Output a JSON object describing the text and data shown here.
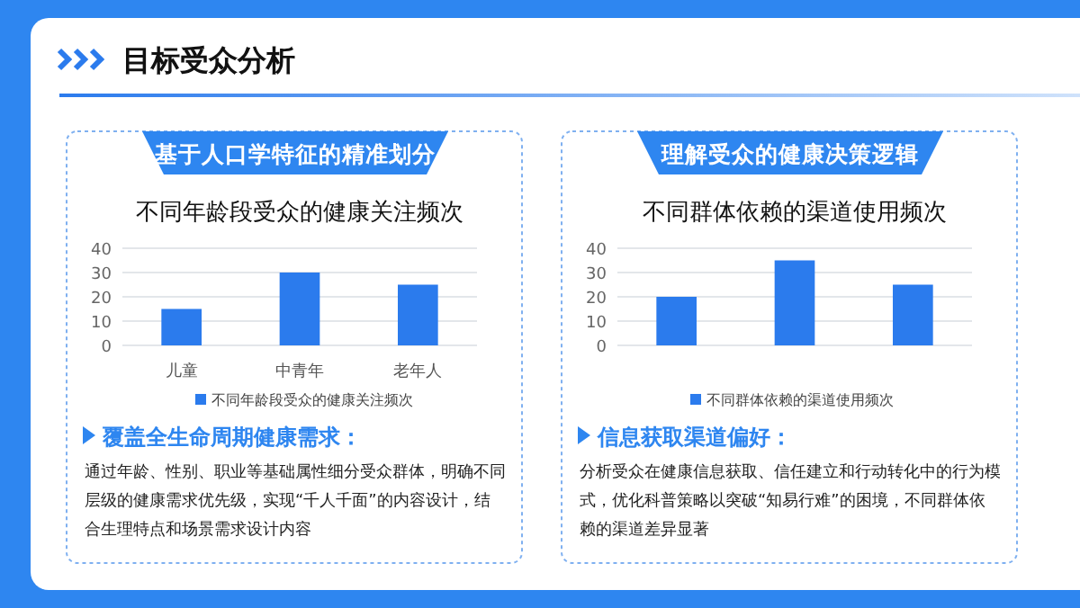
{
  "chart_data": [
    {
      "type": "bar",
      "title": "不同年龄段受众的健康关注频次",
      "categories": [
        "儿童",
        "中青年",
        "老年人"
      ],
      "series": [
        {
          "name": "不同年龄段受众的健康关注频次",
          "color": "#2b7bed",
          "values": [
            15,
            30,
            25
          ]
        }
      ],
      "ylim": [
        0,
        40
      ],
      "yticks": [
        0,
        10,
        20,
        30,
        40
      ],
      "grid": "y",
      "legend": "bottom",
      "annotations": [
        "目标受众分析",
        "基于人口学特征的精准划分",
        "覆盖全生命周期健康需求：",
        "通过年龄、性别、职业等基础属性细分受众群体，明确不同层级的健康需求优先级，实现“千人千面”的内容设计，结合生理特点和场景需求设计内容"
      ]
    },
    {
      "type": "bar",
      "title": "不同群体依赖的渠道使用频次",
      "categories": [
        null,
        null,
        null
      ],
      "series": [
        {
          "name": "不同群体依赖的渠道使用频次",
          "color": "#2b7bed",
          "values": [
            20,
            35,
            25
          ]
        }
      ],
      "ylim": [
        0,
        40
      ],
      "yticks": [
        0,
        10,
        20,
        30,
        40
      ],
      "grid": "y",
      "legend": "bottom",
      "annotations": [
        "理解受众的健康决策逻辑",
        "信息获取渠道偏好：",
        "分析受众在健康信息获取、信任建立和行动转化中的行为模式，优化科普策略以突破“知易行难”的困境，不同群体依赖的渠道差异显著"
      ]
    }
  ]
}
